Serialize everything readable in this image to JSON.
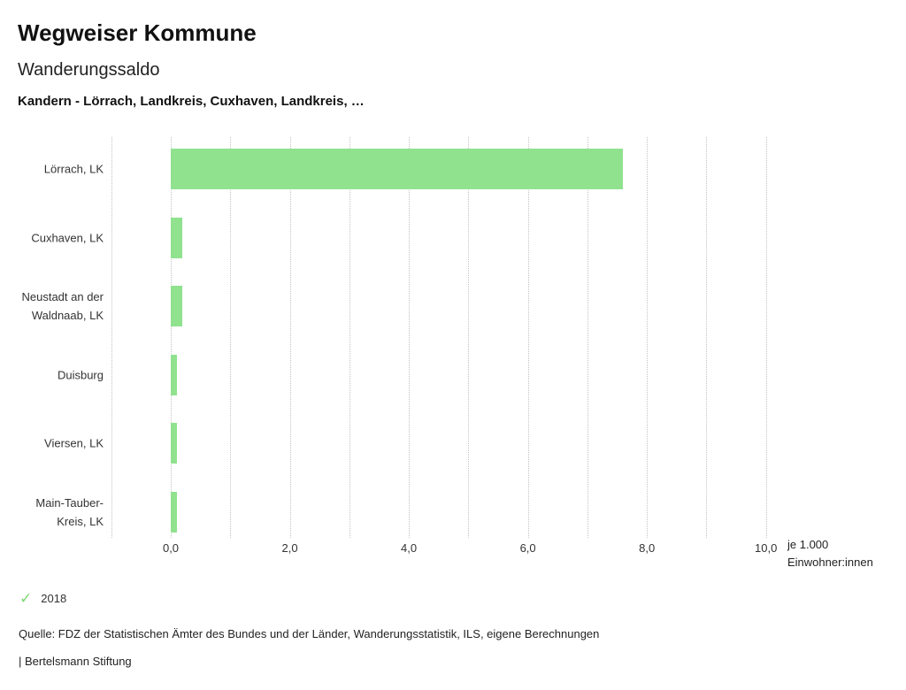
{
  "header": {
    "title": "Wegweiser Kommune",
    "subtitle": "Wanderungssaldo",
    "selection": "Kandern - Lörrach, Landkreis, Cuxhaven, Landkreis, …"
  },
  "chart_data": {
    "type": "bar",
    "orientation": "horizontal",
    "title": "Wanderungssaldo",
    "categories": [
      "Lörrach, LK",
      "Cuxhaven, LK",
      "Neustadt an der Waldnaab, LK",
      "Duisburg",
      "Viersen, LK",
      "Main-Tauber-Kreis, LK"
    ],
    "series": [
      {
        "name": "2018",
        "values": [
          7.6,
          0.2,
          0.2,
          0.1,
          0.1,
          0.1
        ]
      }
    ],
    "xlabel": "je 1.000 Einwohner:innen",
    "ylabel": "",
    "x_tick_labels": [
      "0,0",
      "2,0",
      "4,0",
      "6,0",
      "8,0",
      "10,0"
    ],
    "x_tick_values": [
      0,
      2,
      4,
      6,
      8,
      10
    ],
    "xlim": [
      -1,
      10
    ],
    "grid": "vertical dotted lines at 1.0 intervals",
    "legend_position": "bottom-left",
    "bar_color": "#90e28f"
  },
  "axis_unit": {
    "line1": "je 1.000",
    "line2": "Einwohner:innen"
  },
  "legend": {
    "check_icon": "check-icon",
    "year": "2018",
    "check_color": "#7ed672"
  },
  "footer": {
    "source": "Quelle: FDZ der Statistischen Ämter des Bundes und der Länder, Wanderungsstatistik, ILS, eigene Berechnungen",
    "brand": "| Bertelsmann Stiftung"
  },
  "colors": {
    "bar": "#90e28f",
    "grid": "#c3c3c3",
    "text": "#333333"
  }
}
